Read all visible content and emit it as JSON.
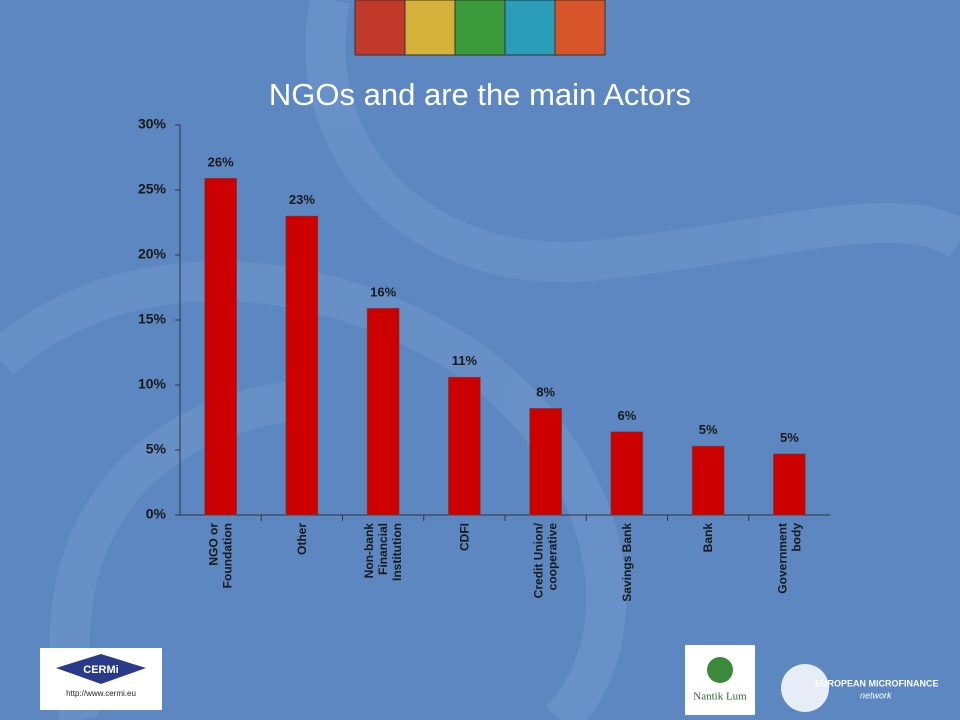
{
  "chart_data": {
    "type": "bar",
    "title": "NGOs and are the main Actors",
    "categories": [
      "NGO or\nFoundation",
      "Other",
      "Non-bank\nFinancial\nInstitution",
      "CDFI",
      "Credit Union/\ncooperative",
      "Savings Bank",
      "Bank",
      "Government\nbody"
    ],
    "values": [
      25.9,
      23.0,
      15.9,
      10.6,
      8.2,
      6.4,
      5.3,
      4.7
    ],
    "value_labels": [
      "26%",
      "23%",
      "16%",
      "11%",
      "8%",
      "6%",
      "5%",
      "5%"
    ],
    "color": "#cc0000",
    "ylim": [
      0,
      30
    ],
    "yticks": [
      {
        "value": 0,
        "label": "0%"
      },
      {
        "value": 5,
        "label": "5%"
      },
      {
        "value": 10,
        "label": "10%"
      },
      {
        "value": 15,
        "label": "15%"
      },
      {
        "value": 20,
        "label": "20%"
      },
      {
        "value": 25,
        "label": "25%"
      },
      {
        "value": 30,
        "label": "30%"
      }
    ],
    "grid": false
  },
  "logos": {
    "cermi": "CERMi",
    "cermi_url": "http://www.cermi.eu",
    "nantik": "Nantik Lum",
    "emn": "EUROPEAN MICROFINANCE",
    "emn_sub": "network"
  }
}
